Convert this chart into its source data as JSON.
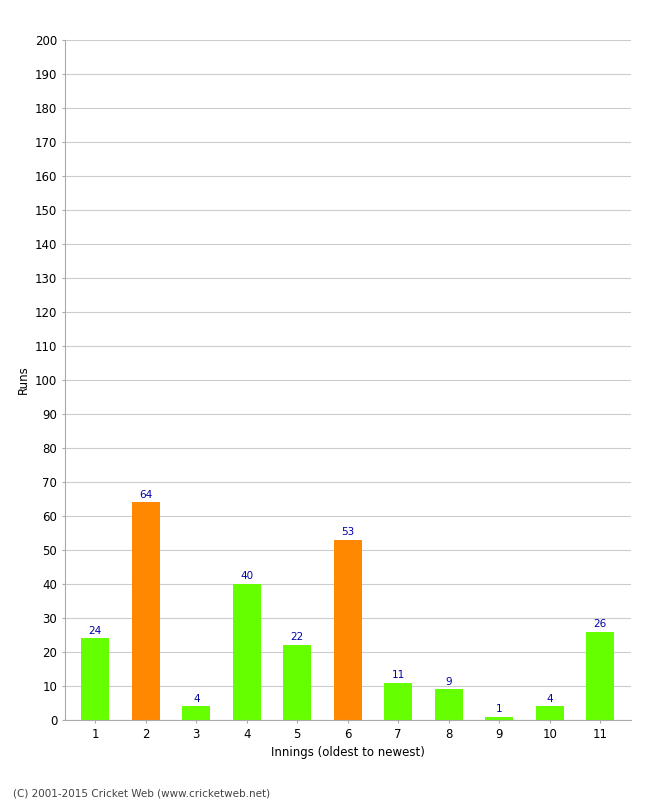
{
  "xlabel": "Innings (oldest to newest)",
  "ylabel": "Runs",
  "categories": [
    "1",
    "2",
    "3",
    "4",
    "5",
    "6",
    "7",
    "8",
    "9",
    "10",
    "11"
  ],
  "values": [
    24,
    64,
    4,
    40,
    22,
    53,
    11,
    9,
    1,
    4,
    26
  ],
  "bar_colors": [
    "#66ff00",
    "#ff8800",
    "#66ff00",
    "#66ff00",
    "#66ff00",
    "#ff8800",
    "#66ff00",
    "#66ff00",
    "#66ff00",
    "#66ff00",
    "#66ff00"
  ],
  "label_color": "#0000aa",
  "ylim": [
    0,
    200
  ],
  "yticks": [
    0,
    10,
    20,
    30,
    40,
    50,
    60,
    70,
    80,
    90,
    100,
    110,
    120,
    130,
    140,
    150,
    160,
    170,
    180,
    190,
    200
  ],
  "grid_color": "#cccccc",
  "bg_color": "#ffffff",
  "footer": "(C) 2001-2015 Cricket Web (www.cricketweb.net)",
  "label_fontsize": 7.5,
  "axis_fontsize": 8.5,
  "footer_fontsize": 7.5,
  "bar_width": 0.55
}
